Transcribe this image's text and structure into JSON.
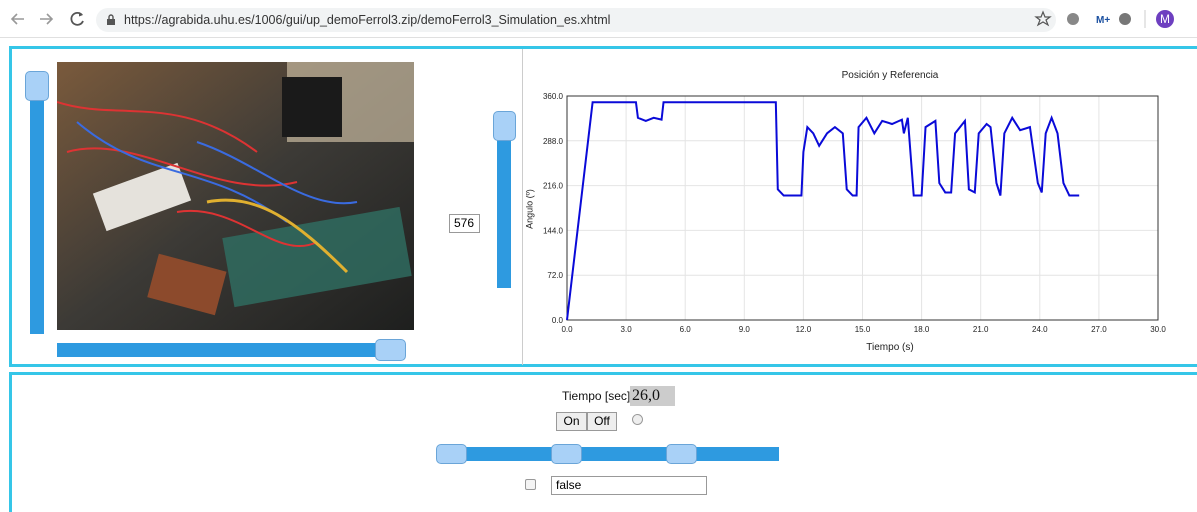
{
  "browser": {
    "url": "https://agrabida.uhu.es/1006/gui/up_demoFerrol3.zip/demoFerrol3_Simulation_es.xhtml",
    "profile": "M"
  },
  "video_panel": {
    "number_input": "576"
  },
  "chart_data": {
    "type": "line",
    "title": "Posición y Referencia",
    "x_label": "Tiempo (s)",
    "y_label": "Angulo (º)",
    "x": [
      0,
      1.3,
      3.5,
      3.6,
      4.0,
      4.4,
      4.8,
      4.9,
      10.6,
      10.7,
      11.0,
      11.9,
      12.0,
      12.2,
      12.5,
      12.8,
      13.2,
      13.6,
      14.0,
      14.2,
      14.5,
      14.7,
      14.8,
      15.2,
      15.6,
      16.0,
      16.5,
      17.0,
      17.1,
      17.3,
      17.6,
      18.0,
      18.2,
      18.7,
      18.9,
      19.2,
      19.5,
      19.7,
      20.2,
      20.4,
      20.7,
      20.9,
      21.3,
      21.5,
      21.8,
      22.0,
      22.2,
      22.6,
      23.0,
      23.5,
      23.9,
      24.1,
      24.3,
      24.6,
      24.9,
      25.2,
      25.5,
      26.0
    ],
    "values": [
      0,
      350,
      350,
      325,
      320,
      325,
      322,
      350,
      350,
      210,
      200,
      200,
      270,
      310,
      300,
      280,
      300,
      310,
      300,
      210,
      200,
      200,
      310,
      325,
      300,
      320,
      315,
      322,
      300,
      325,
      200,
      200,
      310,
      320,
      220,
      205,
      205,
      300,
      320,
      210,
      205,
      300,
      315,
      310,
      220,
      200,
      300,
      325,
      305,
      310,
      220,
      205,
      300,
      325,
      300,
      220,
      200,
      200
    ],
    "color": "#0a0ad8",
    "xlim": [
      0,
      30
    ],
    "ylim": [
      0,
      360
    ],
    "xticks": [
      {
        "value": 0,
        "label": "0.0"
      },
      {
        "value": 3,
        "label": "3.0"
      },
      {
        "value": 6,
        "label": "6.0"
      },
      {
        "value": 9,
        "label": "9.0"
      },
      {
        "value": 12,
        "label": "12.0"
      },
      {
        "value": 15,
        "label": "15.0"
      },
      {
        "value": 18,
        "label": "18.0"
      },
      {
        "value": 21,
        "label": "21.0"
      },
      {
        "value": 24,
        "label": "24.0"
      },
      {
        "value": 27,
        "label": "27.0"
      },
      {
        "value": 30,
        "label": "30.0"
      }
    ],
    "yticks": [
      {
        "value": 0,
        "label": "0.0"
      },
      {
        "value": 72,
        "label": "72.0"
      },
      {
        "value": 144,
        "label": "144.0"
      },
      {
        "value": 216,
        "label": "216.0"
      },
      {
        "value": 288,
        "label": "288.0"
      },
      {
        "value": 360,
        "label": "360.0"
      }
    ],
    "grid": true
  },
  "controls": {
    "time_label": "Tiempo [sec] = ",
    "time_value": "26,0",
    "buttons": [
      "On",
      "Off"
    ],
    "text_input": "false"
  }
}
